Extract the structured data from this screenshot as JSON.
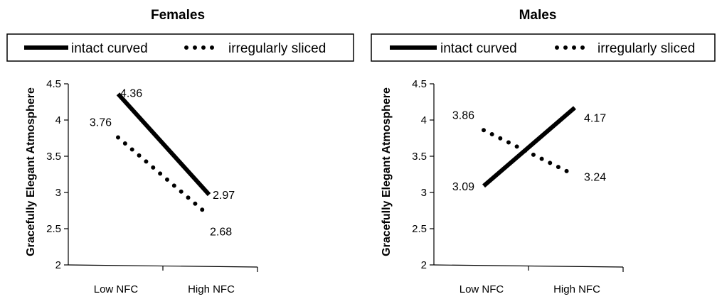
{
  "chart_data": [
    {
      "type": "line",
      "title": "Females",
      "xlabel": "",
      "ylabel": "Gracefully Elegant Atmosphere",
      "categories": [
        "Low NFC",
        "High NFC"
      ],
      "ylim": [
        2,
        4.5
      ],
      "yticks": [
        "2",
        "2.5",
        "3",
        "3.5",
        "4",
        "4.5"
      ],
      "grid": false,
      "legend": "top",
      "series": [
        {
          "name": "intact curved",
          "values": [
            4.36,
            2.97
          ],
          "labels": [
            "4.36",
            "2.97"
          ],
          "style": "solid"
        },
        {
          "name": "irregularly sliced",
          "values": [
            3.76,
            2.68
          ],
          "labels": [
            "3.76",
            "2.68"
          ],
          "style": "dotted"
        }
      ]
    },
    {
      "type": "line",
      "title": "Males",
      "xlabel": "",
      "ylabel": "Gracefully Elegant Atmosphere",
      "categories": [
        "Low NFC",
        "High NFC"
      ],
      "ylim": [
        2,
        4.5
      ],
      "yticks": [
        "2",
        "2.5",
        "3",
        "3.5",
        "4",
        "4.5"
      ],
      "grid": false,
      "legend": "top",
      "series": [
        {
          "name": "intact curved",
          "values": [
            3.09,
            4.17
          ],
          "labels": [
            "3.09",
            "4.17"
          ],
          "style": "solid"
        },
        {
          "name": "irregularly sliced",
          "values": [
            3.86,
            3.24
          ],
          "labels": [
            "3.86",
            "3.24"
          ],
          "style": "dotted"
        }
      ]
    }
  ],
  "colors": {
    "line": "#000000",
    "background": "#ffffff"
  }
}
